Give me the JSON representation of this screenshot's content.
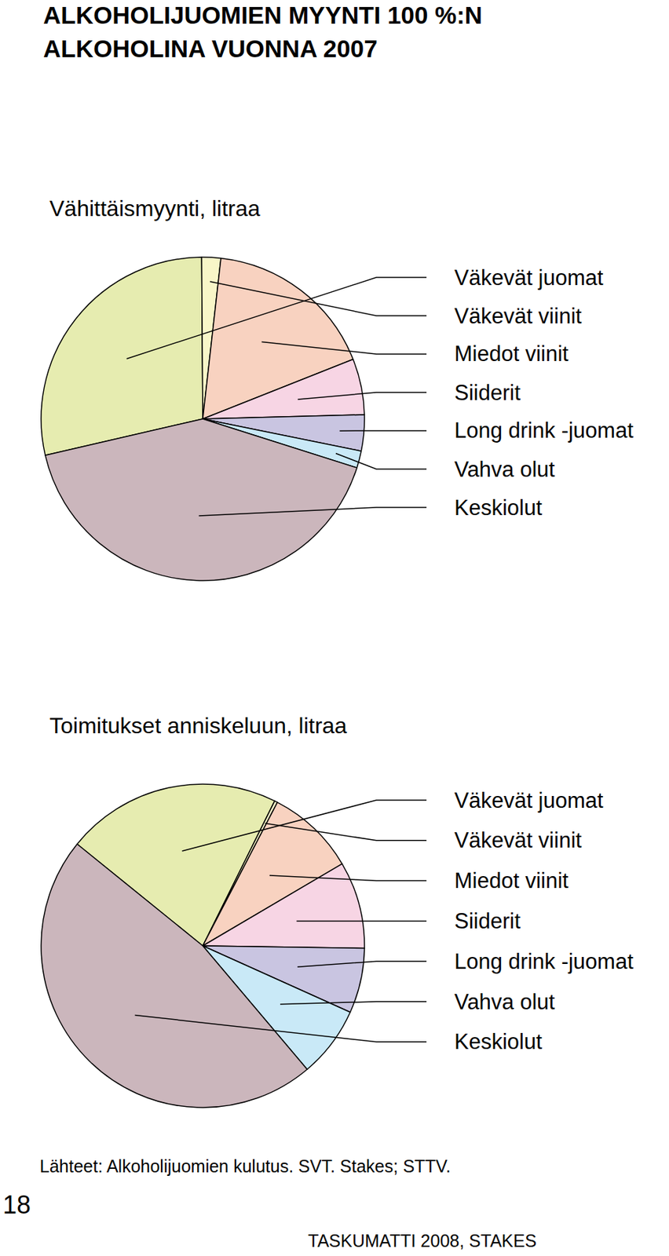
{
  "title": [
    "ALKOHOLIJUOMIEN MYYNTI 100 %:N",
    "ALKOHOLINA VUONNA 2007"
  ],
  "chart_data": [
    {
      "type": "pie",
      "title": "Vähittäismyynti, litraa",
      "categories": [
        "Väkevät juomat",
        "Väkevät viinit",
        "Miedot viinit",
        "Siiderit",
        "Long drink -juomat",
        "Vahva olut",
        "Keskiolut"
      ],
      "values": [
        28.5,
        1.9,
        17.2,
        5.6,
        3.6,
        1.7,
        41.5
      ],
      "colors": [
        "#e6ecb0",
        "#f8f6c8",
        "#f8d2c0",
        "#f7d5e4",
        "#c9c5e1",
        "#c9e9f7",
        "#cbb6bc"
      ],
      "data_labels": false
    },
    {
      "type": "pie",
      "title": "Toimitukset anniskeluun, litraa",
      "categories": [
        "Väkevät juomat",
        "Väkevät viinit",
        "Miedot viinit",
        "Siiderit",
        "Long drink -juomat",
        "Vahva olut",
        "Keskiolut"
      ],
      "values": [
        21.5,
        0.3,
        8.9,
        8.7,
        6.5,
        7.1,
        47.0
      ],
      "colors": [
        "#e6ecb0",
        "#f8f6c8",
        "#f8d2c0",
        "#f7d5e4",
        "#c9c5e1",
        "#c9e9f7",
        "#cbb6bc"
      ],
      "data_labels": false
    }
  ],
  "source": "Lähteet: Alkoholijuomien kulutus. SVT. Stakes; STTV.",
  "page_number": 18,
  "footer": "TASKUMATTI 2008, STAKES"
}
